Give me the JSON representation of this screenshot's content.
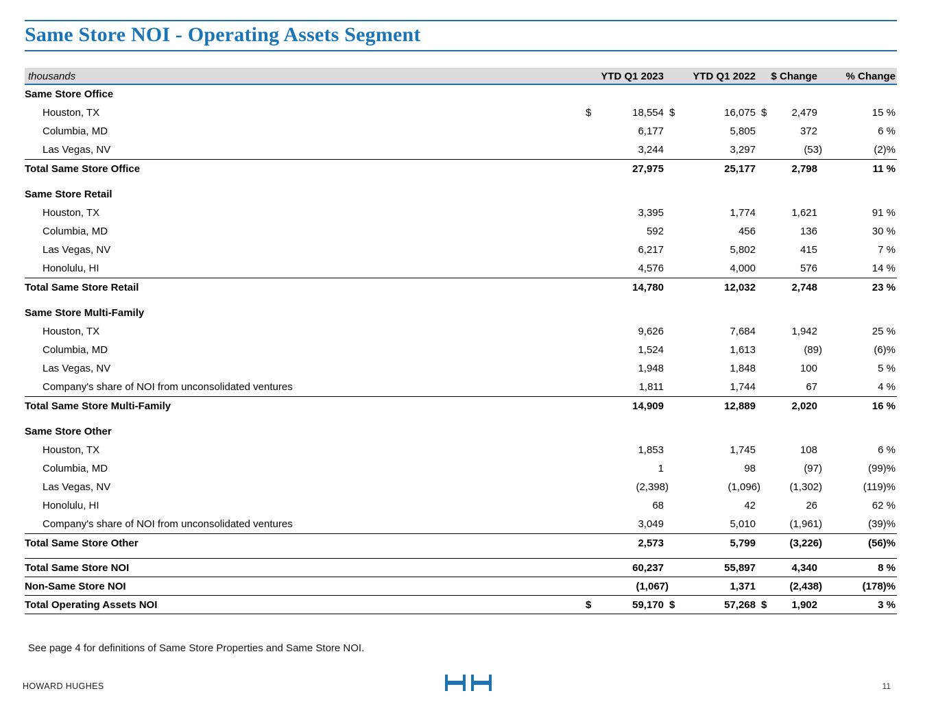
{
  "title": "Same Store NOI - Operating Assets Segment",
  "colors": {
    "accent_blue": "#1b74b4",
    "header_bar_gray": "#dcdcdc"
  },
  "table": {
    "unit_label": "thousands",
    "columns": [
      "YTD Q1 2023",
      "YTD Q1 2022",
      "$ Change",
      "% Change"
    ],
    "sections": [
      {
        "header": "Same Store Office",
        "rows": [
          {
            "label": "Houston, TX",
            "d1": "$",
            "v1": "18,554",
            "d2": "$",
            "v2": "16,075",
            "d3": "$",
            "v3": "2,479",
            "v4": "15 %"
          },
          {
            "label": "Columbia, MD",
            "v1": "6,177",
            "v2": "5,805",
            "v3": "372",
            "v4": "6 %"
          },
          {
            "label": "Las Vegas, NV",
            "v1": "3,244",
            "v2": "3,297",
            "v3": "(53)",
            "v4": "(2)%"
          }
        ],
        "total": {
          "label": "Total Same Store Office",
          "v1": "27,975",
          "v2": "25,177",
          "v3": "2,798",
          "v4": "11 %"
        }
      },
      {
        "header": "Same Store Retail",
        "rows": [
          {
            "label": "Houston, TX",
            "v1": "3,395",
            "v2": "1,774",
            "v3": "1,621",
            "v4": "91 %"
          },
          {
            "label": "Columbia, MD",
            "v1": "592",
            "v2": "456",
            "v3": "136",
            "v4": "30 %"
          },
          {
            "label": "Las Vegas, NV",
            "v1": "6,217",
            "v2": "5,802",
            "v3": "415",
            "v4": "7 %"
          },
          {
            "label": "Honolulu, HI",
            "v1": "4,576",
            "v2": "4,000",
            "v3": "576",
            "v4": "14 %"
          }
        ],
        "total": {
          "label": "Total Same Store Retail",
          "v1": "14,780",
          "v2": "12,032",
          "v3": "2,748",
          "v4": "23 %"
        }
      },
      {
        "header": "Same Store Multi-Family",
        "rows": [
          {
            "label": "Houston, TX",
            "v1": "9,626",
            "v2": "7,684",
            "v3": "1,942",
            "v4": "25 %"
          },
          {
            "label": "Columbia, MD",
            "v1": "1,524",
            "v2": "1,613",
            "v3": "(89)",
            "v4": "(6)%"
          },
          {
            "label": "Las Vegas, NV",
            "v1": "1,948",
            "v2": "1,848",
            "v3": "100",
            "v4": "5 %"
          },
          {
            "label": "Company's share of NOI from unconsolidated ventures",
            "v1": "1,811",
            "v2": "1,744",
            "v3": "67",
            "v4": "4 %"
          }
        ],
        "total": {
          "label": "Total Same Store Multi-Family",
          "v1": "14,909",
          "v2": "12,889",
          "v3": "2,020",
          "v4": "16 %"
        }
      },
      {
        "header": "Same Store Other",
        "rows": [
          {
            "label": "Houston, TX",
            "v1": "1,853",
            "v2": "1,745",
            "v3": "108",
            "v4": "6 %"
          },
          {
            "label": "Columbia, MD",
            "v1": "1",
            "v2": "98",
            "v3": "(97)",
            "v4": "(99)%"
          },
          {
            "label": "Las Vegas, NV",
            "v1": "(2,398)",
            "v2": "(1,096)",
            "v3": "(1,302)",
            "v4": "(119)%"
          },
          {
            "label": "Honolulu, HI",
            "v1": "68",
            "v2": "42",
            "v3": "26",
            "v4": "62 %"
          },
          {
            "label": "Company's share of NOI from unconsolidated ventures",
            "v1": "3,049",
            "v2": "5,010",
            "v3": "(1,961)",
            "v4": "(39)%"
          }
        ],
        "total": {
          "label": "Total Same Store Other",
          "v1": "2,573",
          "v2": "5,799",
          "v3": "(3,226)",
          "v4": "(56)%"
        }
      }
    ],
    "summary_rows": [
      {
        "label": "Total Same Store NOI",
        "v1": "60,237",
        "v2": "55,897",
        "v3": "4,340",
        "v4": "8 %"
      },
      {
        "label": "Non-Same Store NOI",
        "v1": "(1,067)",
        "v2": "1,371",
        "v3": "(2,438)",
        "v4": "(178)%"
      },
      {
        "label": "Total Operating Assets NOI",
        "d1": "$",
        "v1": "59,170",
        "d2": "$",
        "v2": "57,268",
        "d3": "$",
        "v3": "1,902",
        "v4": "3 %"
      }
    ]
  },
  "footnote": "See page 4 for definitions of Same Store Properties and Same Store NOI.",
  "footer": {
    "company": "HOWARD HUGHES",
    "page_number": "11"
  }
}
